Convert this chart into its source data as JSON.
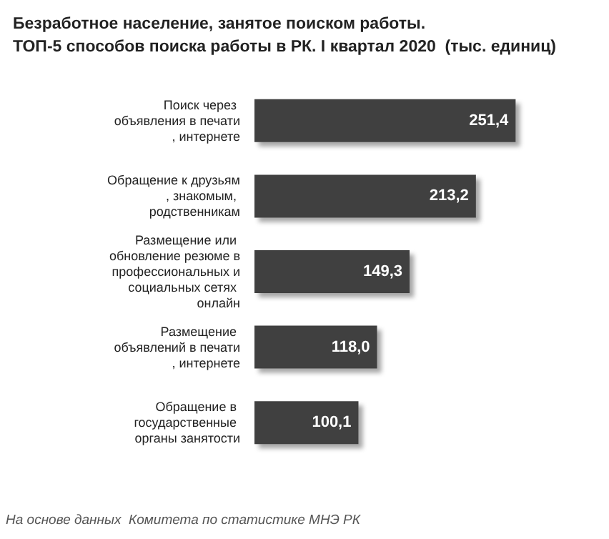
{
  "chart_data": {
    "type": "bar",
    "orientation": "horizontal",
    "title": "Безработное население, занятое поиском работы.\nТОП-5 способов поиска работы в РК. I квартал 2020  (тыс. единиц)",
    "categories": [
      "Поиск через объявления в печати, интернете",
      "Обращение к друзьям, знакомым, родственникам",
      "Размещение или обновление резюме в профессиональных и социальных сетях онлайн",
      "Размещение объявлений в печати, интернете",
      "Обращение в государственные органы занятости"
    ],
    "values": [
      251.4,
      213.2,
      149.3,
      118.0,
      100.1
    ],
    "value_labels": [
      "251,4",
      "213,2",
      "149,3",
      "118,0",
      "100,1"
    ],
    "color": "#404040",
    "annotations": [
      "На основе данных  Комитета по статистике МНЭ РК"
    ]
  }
}
